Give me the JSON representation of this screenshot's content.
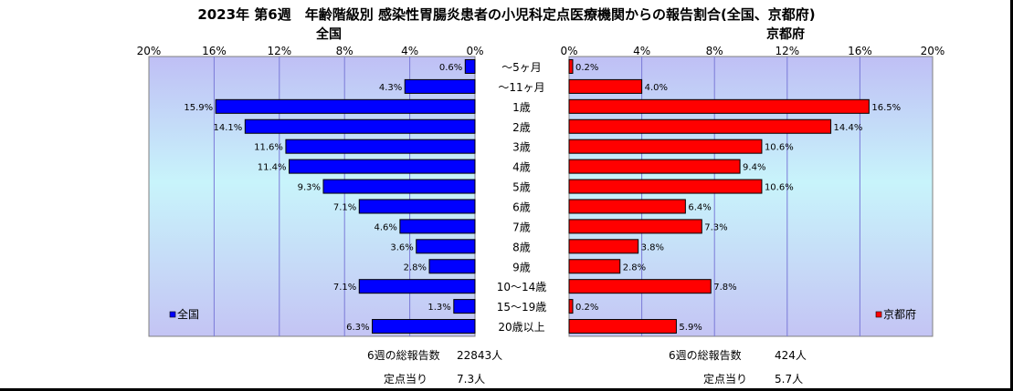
{
  "chart_data": {
    "type": "bar",
    "title": "2023年 第6週　年齢階級別 感染性胃腸炎患者の小児科定点医療機関からの報告割合(全国、京都府)",
    "categories": [
      "～5ヶ月",
      "～11ヶ月",
      "1歳",
      "2歳",
      "3歳",
      "4歳",
      "5歳",
      "6歳",
      "7歳",
      "8歳",
      "9歳",
      "10～14歳",
      "15～19歳",
      "20歳以上"
    ],
    "xlim": [
      0,
      20
    ],
    "tick_labels": [
      "0%",
      "4%",
      "8%",
      "12%",
      "16%",
      "20%"
    ],
    "panels": [
      {
        "name": "全国",
        "legend": "全国",
        "color": "#0000ff",
        "values": [
          0.6,
          4.3,
          15.9,
          14.1,
          11.6,
          11.4,
          9.3,
          7.1,
          4.6,
          3.6,
          2.8,
          7.1,
          1.3,
          6.3
        ],
        "value_labels": [
          "0.6%",
          "4.3%",
          "15.9%",
          "14.1%",
          "11.6%",
          "11.4%",
          "9.3%",
          "7.1%",
          "4.6%",
          "3.6%",
          "2.8%",
          "7.1%",
          "1.3%",
          "6.3%"
        ],
        "total_label": "6週の総報告数",
        "total_value": "22843人",
        "per_site_label": "定点当り",
        "per_site_value": "7.3人"
      },
      {
        "name": "京都府",
        "legend": "京都府",
        "color": "#ff0000",
        "values": [
          0.2,
          4.0,
          16.5,
          14.4,
          10.6,
          9.4,
          10.6,
          6.4,
          7.3,
          3.8,
          2.8,
          7.8,
          0.2,
          5.9
        ],
        "value_labels": [
          "0.2%",
          "4.0%",
          "16.5%",
          "14.4%",
          "10.6%",
          "9.4%",
          "10.6%",
          "6.4%",
          "7.3%",
          "3.8%",
          "2.8%",
          "7.8%",
          "0.2%",
          "5.9%"
        ],
        "total_label": "6週の総報告数",
        "total_value": "424人",
        "per_site_label": "定点当り",
        "per_site_value": "5.7人"
      }
    ],
    "grid": true,
    "legend_position": "bottom-left / bottom-right"
  }
}
